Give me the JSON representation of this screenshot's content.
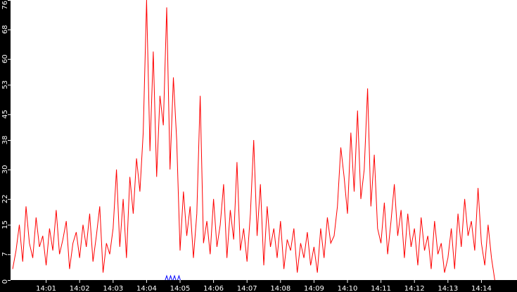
{
  "chart_data": {
    "type": "line",
    "title": "",
    "xlabel": "",
    "ylabel": "",
    "ylim": [
      0,
      76
    ],
    "yticks": [
      "0",
      "7",
      "15",
      "22",
      "30",
      "38",
      "45",
      "53",
      "60",
      "68",
      "76"
    ],
    "xticks": [
      "14:01",
      "14:02",
      "14:03",
      "14:04",
      "14:05",
      "14:06",
      "14:07",
      "14:08",
      "14:09",
      "14:10",
      "14:11",
      "14:12",
      "14:13",
      "14:14"
    ],
    "grid": false,
    "legend": "none",
    "colors": {
      "line": "#ff0000",
      "marker": "#0000ff",
      "axis_bg": "#000000",
      "axis_text": "#ffffff",
      "plot_bg": "#ffffff"
    },
    "series": [
      {
        "by_minute": [
          {
            "minute": "14:00",
            "values": [
              3,
              8,
              15,
              5,
              20,
              10,
              6,
              17,
              9,
              12
            ]
          },
          {
            "minute": "14:01",
            "values": [
              4,
              14,
              8,
              19,
              7,
              11,
              16,
              3,
              10,
              13
            ]
          },
          {
            "minute": "14:02",
            "values": [
              6,
              15,
              9,
              18,
              5,
              12,
              20,
              2,
              10,
              7
            ]
          },
          {
            "minute": "14:03",
            "values": [
              14,
              30,
              9,
              22,
              6,
              28,
              18,
              33,
              24,
              40
            ]
          },
          {
            "minute": "14:04",
            "values": [
              76,
              35,
              62,
              28,
              50,
              42,
              74,
              30,
              55,
              38
            ]
          },
          {
            "minute": "14:05",
            "values": [
              8,
              24,
              12,
              20,
              6,
              18,
              50,
              10,
              16,
              7
            ]
          },
          {
            "minute": "14:06",
            "values": [
              22,
              9,
              15,
              26,
              6,
              19,
              11,
              32,
              8,
              14
            ]
          },
          {
            "minute": "14:07",
            "values": [
              5,
              18,
              38,
              12,
              26,
              4,
              20,
              9,
              14,
              6
            ]
          },
          {
            "minute": "14:08",
            "values": [
              16,
              3,
              11,
              8,
              14,
              2,
              10,
              6,
              13,
              4
            ]
          },
          {
            "minute": "14:09",
            "values": [
              9,
              2,
              14,
              6,
              17,
              10,
              12,
              20,
              36,
              28
            ]
          },
          {
            "minute": "14:10",
            "values": [
              18,
              40,
              24,
              46,
              22,
              30,
              52,
              20,
              34,
              14
            ]
          },
          {
            "minute": "14:11",
            "values": [
              10,
              21,
              7,
              16,
              26,
              12,
              19,
              6,
              18,
              9
            ]
          },
          {
            "minute": "14:12",
            "values": [
              14,
              4,
              17,
              8,
              12,
              3,
              16,
              7,
              10,
              2
            ]
          },
          {
            "minute": "14:13",
            "values": [
              6,
              14,
              3,
              18,
              9,
              22,
              12,
              16,
              8,
              25
            ]
          },
          {
            "minute": "14:14",
            "values": [
              10,
              4,
              15,
              6,
              0
            ]
          }
        ]
      }
    ],
    "event_markers": [
      "14:04:36",
      "14:04:43",
      "14:04:50",
      "14:04:58"
    ]
  }
}
